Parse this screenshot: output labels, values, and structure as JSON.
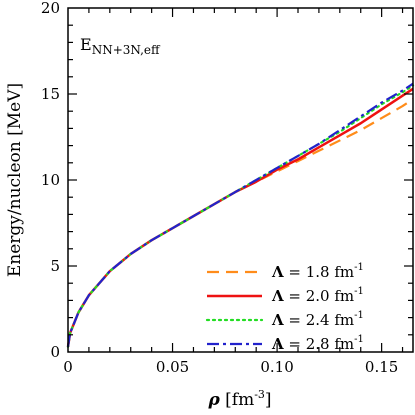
{
  "chart_data": {
    "type": "line",
    "annotation_main": "E",
    "annotation_sub": "NN+3N,eff",
    "xlabel_symbol": "ρ",
    "xlabel_unit_open": " [fm",
    "xlabel_unit_exp": "-3",
    "xlabel_unit_close": "]",
    "ylabel": "Energy/nucleon [MeV]",
    "xlim": [
      0,
      0.165
    ],
    "ylim": [
      0,
      20
    ],
    "xticks": [
      0,
      0.05,
      0.1,
      0.15
    ],
    "xtick_labels": [
      "0",
      "0.05",
      "0.10",
      "0.15"
    ],
    "yticks": [
      0,
      5,
      10,
      15,
      20
    ],
    "ytick_labels": [
      "0",
      "5",
      "10",
      "15",
      "20"
    ],
    "legend_position": "bottom-right",
    "series": [
      {
        "name_symbol": "Λ",
        "name_value": " = 1.8 fm",
        "name_exp": "-1",
        "color": "#ff8c1a",
        "style": "dashed",
        "x": [
          0.0,
          0.001,
          0.005,
          0.01,
          0.02,
          0.03,
          0.04,
          0.05,
          0.06,
          0.07,
          0.08,
          0.09,
          0.1,
          0.11,
          0.12,
          0.13,
          0.14,
          0.15,
          0.16,
          0.165
        ],
        "y": [
          0.3,
          1.1,
          2.3,
          3.3,
          4.7,
          5.7,
          6.5,
          7.2,
          7.9,
          8.6,
          9.3,
          9.9,
          10.5,
          11.1,
          11.7,
          12.3,
          12.9,
          13.6,
          14.3,
          14.7
        ]
      },
      {
        "name_symbol": "Λ",
        "name_value": " = 2.0 fm",
        "name_exp": "-1",
        "color": "#ee1111",
        "style": "solid",
        "x": [
          0.0,
          0.001,
          0.005,
          0.01,
          0.02,
          0.03,
          0.04,
          0.05,
          0.06,
          0.07,
          0.08,
          0.09,
          0.1,
          0.11,
          0.12,
          0.13,
          0.14,
          0.15,
          0.16,
          0.165
        ],
        "y": [
          0.3,
          1.1,
          2.3,
          3.3,
          4.7,
          5.7,
          6.5,
          7.2,
          7.9,
          8.6,
          9.3,
          9.9,
          10.6,
          11.2,
          11.9,
          12.6,
          13.3,
          14.1,
          14.9,
          15.3
        ]
      },
      {
        "name_symbol": "Λ",
        "name_value": " = 2.4 fm",
        "name_exp": "-1",
        "color": "#22dd22",
        "style": "dotted",
        "x": [
          0.0,
          0.001,
          0.005,
          0.01,
          0.02,
          0.03,
          0.04,
          0.05,
          0.06,
          0.07,
          0.08,
          0.09,
          0.1,
          0.11,
          0.12,
          0.13,
          0.14,
          0.15,
          0.16,
          0.165
        ],
        "y": [
          0.3,
          1.1,
          2.3,
          3.3,
          4.7,
          5.7,
          6.5,
          7.2,
          7.9,
          8.6,
          9.3,
          10.0,
          10.7,
          11.4,
          12.1,
          12.8,
          13.6,
          14.4,
          15.1,
          15.5
        ]
      },
      {
        "name_symbol": "Λ",
        "name_value": " = 2.8 fm",
        "name_exp": "-1",
        "color": "#2222cc",
        "style": "dashdot",
        "x": [
          0.0,
          0.001,
          0.005,
          0.01,
          0.02,
          0.03,
          0.04,
          0.05,
          0.06,
          0.07,
          0.08,
          0.09,
          0.1,
          0.11,
          0.12,
          0.13,
          0.14,
          0.15,
          0.16,
          0.165
        ],
        "y": [
          0.3,
          1.1,
          2.3,
          3.3,
          4.7,
          5.7,
          6.5,
          7.2,
          7.9,
          8.6,
          9.3,
          10.0,
          10.7,
          11.4,
          12.1,
          12.9,
          13.7,
          14.5,
          15.2,
          15.6
        ]
      }
    ]
  }
}
